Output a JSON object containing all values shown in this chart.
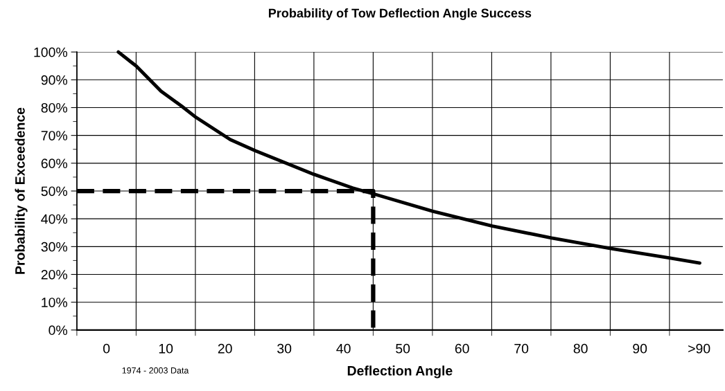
{
  "chart_data": {
    "type": "line",
    "title": "Probability of Tow Deflection Angle Success",
    "xlabel": "Deflection Angle",
    "ylabel": "Probability of Exceedence",
    "annotations": [
      "1974 - 2003 Data"
    ],
    "series": [
      {
        "color": "#000000",
        "line_style": "solid",
        "x": [
          2,
          4.2,
          5,
          9.2,
          12.7,
          15.1,
          20.9,
          25.1,
          30.6,
          35,
          41.5,
          45,
          55.1,
          65.1,
          75.1,
          85.1,
          95.1,
          100.1
        ],
        "values": [
          100,
          96.3,
          95,
          85.9,
          80.5,
          76.5,
          68.5,
          64.5,
          59.8,
          56,
          51.1,
          49,
          42.7,
          37.4,
          33.1,
          29.3,
          25.9,
          24.1
        ]
      },
      {
        "color": "#000000",
        "line_style": "dashed",
        "x": [
          -5,
          45,
          45
        ],
        "values": [
          50,
          50,
          0
        ]
      }
    ],
    "xlim": [
      -5,
      104
    ],
    "xticks": [
      {
        "value": -5,
        "label": null
      },
      {
        "value": 0,
        "label": "0"
      },
      {
        "value": 5,
        "label": null
      },
      {
        "value": 10,
        "label": "10"
      },
      {
        "value": 15,
        "label": null
      },
      {
        "value": 20,
        "label": "20"
      },
      {
        "value": 25,
        "label": null
      },
      {
        "value": 30,
        "label": "30"
      },
      {
        "value": 35,
        "label": null
      },
      {
        "value": 40,
        "label": "40"
      },
      {
        "value": 45,
        "label": null
      },
      {
        "value": 50,
        "label": "50"
      },
      {
        "value": 55,
        "label": null
      },
      {
        "value": 60,
        "label": "60"
      },
      {
        "value": 65,
        "label": null
      },
      {
        "value": 70,
        "label": "70"
      },
      {
        "value": 75,
        "label": null
      },
      {
        "value": 80,
        "label": "80"
      },
      {
        "value": 85,
        "label": null
      },
      {
        "value": 90,
        "label": "90"
      },
      {
        "value": 95,
        "label": null
      },
      {
        "value": 100,
        "label": ">90"
      }
    ],
    "ylim": [
      0,
      100
    ],
    "yticks": [
      {
        "value": 0,
        "label": "0%"
      },
      {
        "value": 5,
        "label": null
      },
      {
        "value": 10,
        "label": "10%"
      },
      {
        "value": 15,
        "label": null
      },
      {
        "value": 20,
        "label": "20%"
      },
      {
        "value": 25,
        "label": null
      },
      {
        "value": 30,
        "label": "30%"
      },
      {
        "value": 35,
        "label": null
      },
      {
        "value": 40,
        "label": "40%"
      },
      {
        "value": 45,
        "label": null
      },
      {
        "value": 50,
        "label": "50%"
      },
      {
        "value": 55,
        "label": null
      },
      {
        "value": 60,
        "label": "60%"
      },
      {
        "value": 65,
        "label": null
      },
      {
        "value": 70,
        "label": "70%"
      },
      {
        "value": 75,
        "label": null
      },
      {
        "value": 80,
        "label": "80%"
      },
      {
        "value": 85,
        "label": null
      },
      {
        "value": 90,
        "label": "90%"
      },
      {
        "value": 95,
        "label": null
      },
      {
        "value": 100,
        "label": "100%"
      }
    ],
    "grid": true
  }
}
